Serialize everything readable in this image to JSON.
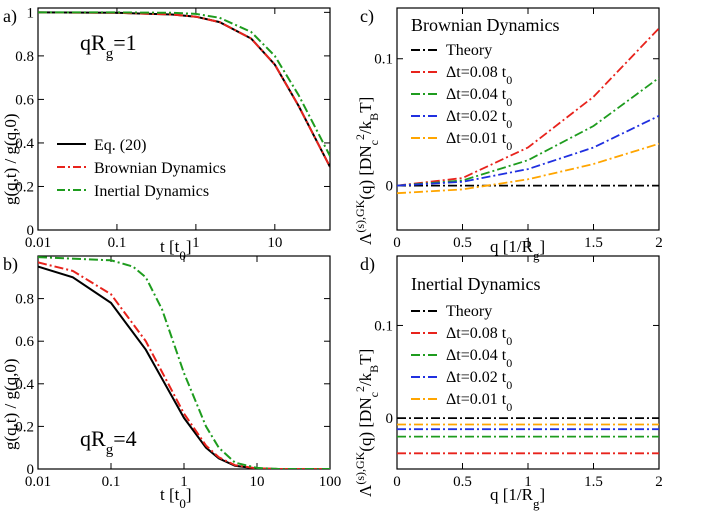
{
  "chart_data": [
    {
      "panel": "a)",
      "type": "line",
      "annotation": "qR_g=1",
      "xlabel": "t [t_0]",
      "ylabel": "g(q,t) / g(q,0)",
      "xscale": "log",
      "xlim": [
        0.01,
        50
      ],
      "ylim": [
        0,
        1.02
      ],
      "xticks": [
        "0.01",
        "0.1",
        "1",
        "10"
      ],
      "yticks": [
        "0",
        "0.2",
        "0.4",
        "0.6",
        "0.8",
        "1"
      ],
      "legend": "center-right",
      "series": [
        {
          "name": "Eq. (20)",
          "color": "#000000",
          "dash": "solid",
          "x": [
            0.01,
            0.1,
            0.5,
            1,
            2,
            5,
            10,
            20,
            50
          ],
          "y": [
            1.0,
            0.998,
            0.99,
            0.98,
            0.955,
            0.88,
            0.76,
            0.57,
            0.29
          ]
        },
        {
          "name": "Brownian Dynamics",
          "color": "#e8231c",
          "dash": "dashdot",
          "x": [
            0.01,
            0.1,
            0.5,
            1,
            2,
            5,
            10,
            20,
            50
          ],
          "y": [
            1.0,
            0.998,
            0.99,
            0.98,
            0.955,
            0.88,
            0.76,
            0.57,
            0.29
          ]
        },
        {
          "name": "Inertial Dynamics",
          "color": "#1e9c1e",
          "dash": "dashdot",
          "x": [
            0.01,
            0.1,
            0.5,
            1,
            2,
            5,
            10,
            20,
            50
          ],
          "y": [
            1.0,
            1.0,
            0.998,
            0.993,
            0.975,
            0.91,
            0.8,
            0.62,
            0.34
          ]
        }
      ]
    },
    {
      "panel": "b)",
      "type": "line",
      "annotation": "qR_g=4",
      "xlabel": "t [t_0]",
      "ylabel": "g(q,t) / g(q,0)",
      "xscale": "log",
      "xlim": [
        0.01,
        100
      ],
      "ylim": [
        0,
        1.0
      ],
      "xticks": [
        "0.01",
        "0.1",
        "1",
        "10",
        "100"
      ],
      "yticks": [
        "0",
        "0.2",
        "0.4",
        "0.6",
        "0.8"
      ],
      "series": [
        {
          "name": "Eq. (20)",
          "color": "#000000",
          "dash": "solid",
          "x": [
            0.01,
            0.03,
            0.1,
            0.3,
            1,
            2,
            3,
            5,
            10,
            20,
            100
          ],
          "y": [
            0.95,
            0.9,
            0.78,
            0.56,
            0.24,
            0.1,
            0.05,
            0.015,
            0.002,
            0,
            0
          ]
        },
        {
          "name": "Brownian Dynamics",
          "color": "#e8231c",
          "dash": "dashdot",
          "x": [
            0.01,
            0.03,
            0.1,
            0.3,
            1,
            2,
            3,
            5,
            10,
            20,
            100
          ],
          "y": [
            0.97,
            0.93,
            0.82,
            0.6,
            0.26,
            0.11,
            0.055,
            0.018,
            0.003,
            0,
            0
          ]
        },
        {
          "name": "Inertial Dynamics",
          "color": "#1e9c1e",
          "dash": "dashdot",
          "x": [
            0.01,
            0.1,
            0.2,
            0.3,
            0.5,
            1,
            2,
            3,
            5,
            10,
            20,
            100
          ],
          "y": [
            0.995,
            0.98,
            0.95,
            0.9,
            0.75,
            0.45,
            0.2,
            0.1,
            0.03,
            0.005,
            0,
            0
          ]
        }
      ]
    },
    {
      "panel": "c)",
      "type": "line",
      "title": "Brownian Dynamics",
      "xlabel": "q [1/R_g]",
      "ylabel": "Λ^(s),GK(q) [D N_c^2/k_B T]",
      "xlim": [
        0,
        2
      ],
      "ylim": [
        -0.035,
        0.14
      ],
      "xticks": [
        "0",
        "0.5",
        "1",
        "1.5",
        "2"
      ],
      "yticks": [
        "0",
        "0.1"
      ],
      "legend": "top-left",
      "series": [
        {
          "name": "Theory",
          "color": "#000000",
          "dash": "dashdot",
          "x": [
            0,
            2
          ],
          "y": [
            0,
            0
          ]
        },
        {
          "name": "Δt=0.08 t_0",
          "color": "#e8231c",
          "dash": "dashdot",
          "x": [
            0,
            0.5,
            1,
            1.5,
            2
          ],
          "y": [
            0.0,
            0.006,
            0.03,
            0.07,
            0.124
          ]
        },
        {
          "name": "Δt=0.04 t_0",
          "color": "#1e9c1e",
          "dash": "dashdot",
          "x": [
            0,
            0.5,
            1,
            1.5,
            2
          ],
          "y": [
            0.0,
            0.004,
            0.02,
            0.047,
            0.085
          ]
        },
        {
          "name": "Δt=0.02 t_0",
          "color": "#2030e0",
          "dash": "dashdot",
          "x": [
            0,
            0.5,
            1,
            1.5,
            2
          ],
          "y": [
            0.0,
            0.003,
            0.013,
            0.03,
            0.055
          ]
        },
        {
          "name": "Δt=0.01 t_0",
          "color": "#ffa500",
          "dash": "dashdot",
          "x": [
            0,
            0.5,
            1,
            1.5,
            2
          ],
          "y": [
            -0.006,
            -0.003,
            0.005,
            0.017,
            0.033
          ]
        }
      ]
    },
    {
      "panel": "d)",
      "type": "line",
      "title": "Inertial Dynamics",
      "xlabel": "q [1/R_g]",
      "ylabel": "Λ^(s),GK(q) [D N_c^2/k_B T]",
      "xlim": [
        0,
        2
      ],
      "ylim": [
        -0.055,
        0.175
      ],
      "xticks": [
        "0",
        "0.5",
        "1",
        "1.5",
        "2"
      ],
      "yticks": [
        "0",
        "0.1"
      ],
      "legend": "top-left",
      "series": [
        {
          "name": "Theory",
          "color": "#000000",
          "dash": "dashdot",
          "x": [
            0,
            2
          ],
          "y": [
            0,
            0
          ]
        },
        {
          "name": "Δt=0.08 t_0",
          "color": "#e8231c",
          "dash": "dashdot",
          "x": [
            0,
            2
          ],
          "y": [
            -0.038,
            -0.038
          ]
        },
        {
          "name": "Δt=0.04 t_0",
          "color": "#1e9c1e",
          "dash": "dashdot",
          "x": [
            0,
            2
          ],
          "y": [
            -0.02,
            -0.02
          ]
        },
        {
          "name": "Δt=0.02 t_0",
          "color": "#2030e0",
          "dash": "dashdot",
          "x": [
            0,
            2
          ],
          "y": [
            -0.012,
            -0.012
          ]
        },
        {
          "name": "Δt=0.01 t_0",
          "color": "#ffa500",
          "dash": "dashdot",
          "x": [
            0,
            2
          ],
          "y": [
            -0.007,
            -0.007
          ]
        }
      ]
    }
  ]
}
